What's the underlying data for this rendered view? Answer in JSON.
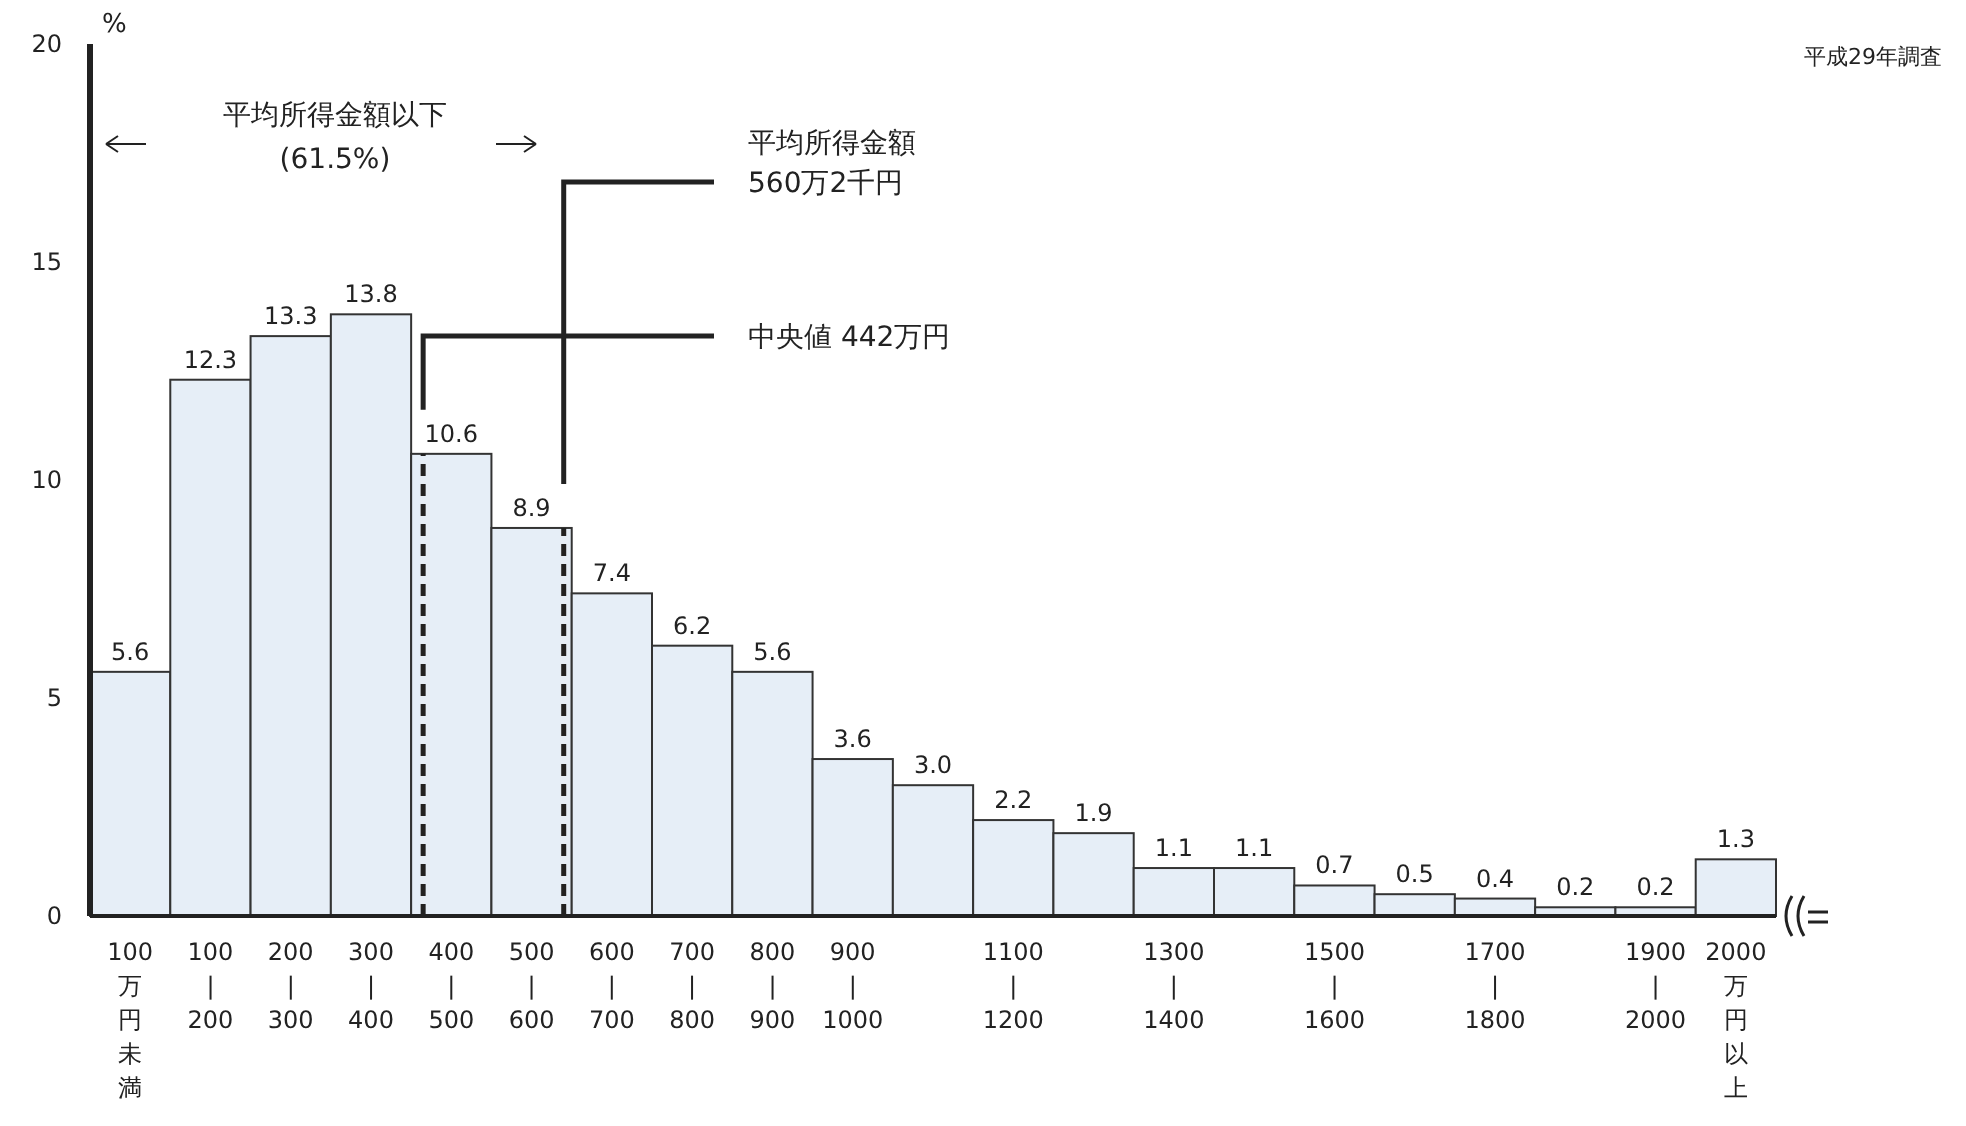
{
  "chart_data": {
    "type": "bar",
    "ylabel": "%",
    "categories": [
      "100万円未満",
      "100\n|\n200",
      "200\n|\n300",
      "300\n|\n400",
      "400\n|\n500",
      "500\n|\n600",
      "600\n|\n700",
      "700\n|\n800",
      "800\n|\n900",
      "900\n|\n1000",
      null,
      "1100\n|\n1200",
      null,
      "1300\n|\n1400",
      null,
      "1500\n|\n1600",
      null,
      "1700\n|\n1800",
      null,
      "1900\n|\n2000",
      "2000万円以上"
    ],
    "values": [
      5.6,
      12.3,
      13.3,
      13.8,
      10.6,
      8.9,
      7.4,
      6.2,
      5.6,
      3.6,
      3.0,
      2.2,
      1.9,
      1.1,
      1.1,
      0.7,
      0.5,
      0.4,
      0.2,
      0.2,
      1.3
    ],
    "value_labels": [
      "5.6",
      "12.3",
      "13.3",
      "13.8",
      "10.6",
      "8.9",
      "7.4",
      "6.2",
      "5.6",
      "3.6",
      "3.0",
      "2.2",
      "1.9",
      "1.1",
      "1.1",
      "0.7",
      "0.5",
      "0.4",
      "0.2",
      "0.2",
      "1.3"
    ],
    "color": "#e6eef7",
    "ylim": [
      0,
      20
    ],
    "yticks": [
      0,
      5,
      10,
      15,
      20
    ],
    "grid": false,
    "annotations": [
      {
        "text": "平成29年調査"
      },
      {
        "text": "平均所得金額以下\n(61.5%)"
      },
      "平均所得金額\n560万2千円",
      "中央値 442万円"
    ]
  }
}
